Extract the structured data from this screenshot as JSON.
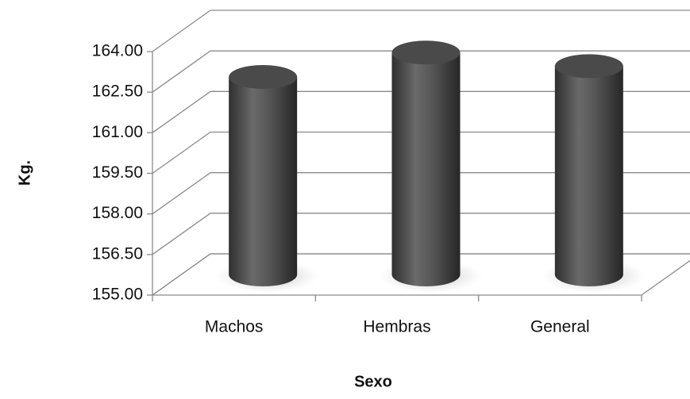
{
  "chart_data": {
    "type": "bar3d",
    "x_label": "Sexo",
    "y_label": "Kg.",
    "categories": [
      "Machos",
      "Hembras",
      "General"
    ],
    "values": [
      162.3,
      163.2,
      162.7
    ],
    "color": "#4a4a4a",
    "ylim": [
      155,
      164
    ],
    "yticks": [
      {
        "value": 155,
        "label": "155.00"
      },
      {
        "value": 156.5,
        "label": "156.50"
      },
      {
        "value": 158,
        "label": "158.00"
      },
      {
        "value": 159.5,
        "label": "159.50"
      },
      {
        "value": 161,
        "label": "161.00"
      },
      {
        "value": 162.5,
        "label": "162.50"
      },
      {
        "value": 164,
        "label": "164.00"
      }
    ],
    "grid": true
  }
}
